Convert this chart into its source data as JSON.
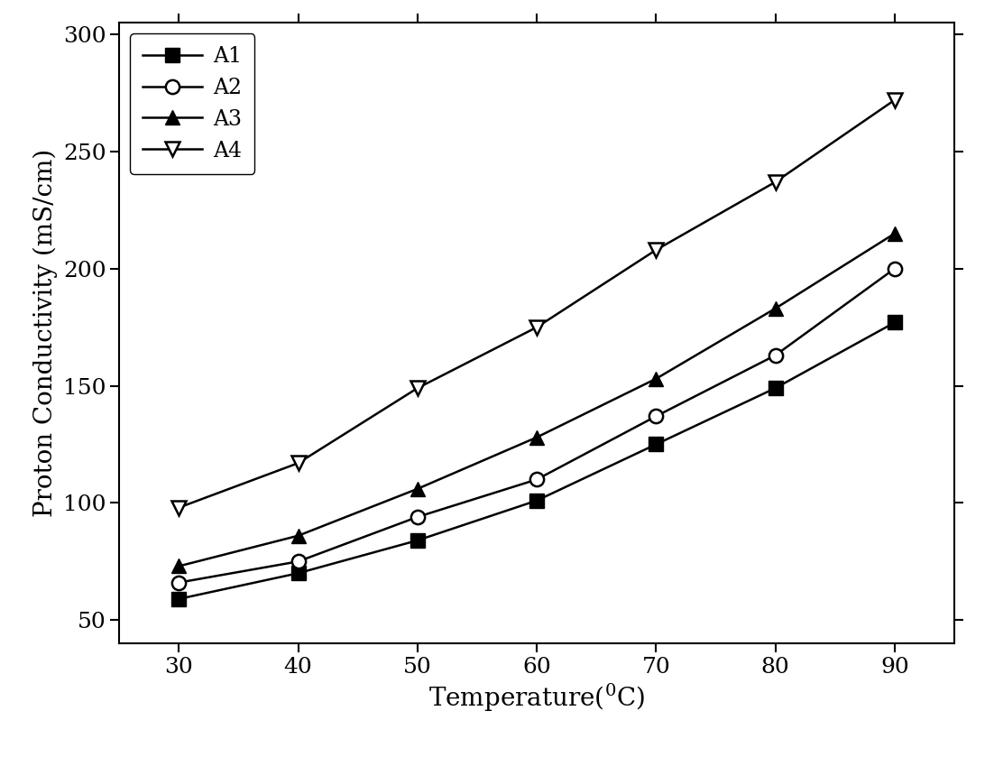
{
  "x": [
    30,
    40,
    50,
    60,
    70,
    80,
    90
  ],
  "A1": [
    59,
    70,
    84,
    101,
    125,
    149,
    177
  ],
  "A2": [
    66,
    75,
    94,
    110,
    137,
    163,
    200
  ],
  "A3": [
    73,
    86,
    106,
    128,
    153,
    183,
    215
  ],
  "A4": [
    98,
    117,
    149,
    175,
    208,
    237,
    272
  ],
  "xlabel": "Temperature($^{0}$C)",
  "ylabel": "Proton Conductivity (mS/cm)",
  "xlim": [
    25,
    95
  ],
  "ylim": [
    40,
    305
  ],
  "xticks": [
    30,
    40,
    50,
    60,
    70,
    80,
    90
  ],
  "yticks": [
    50,
    100,
    150,
    200,
    250,
    300
  ],
  "legend_labels": [
    "A1",
    "A2",
    "A3",
    "A4"
  ],
  "color": "black",
  "linewidth": 1.8,
  "markersize": 11,
  "label_fontsize": 20,
  "tick_fontsize": 18,
  "legend_fontsize": 17
}
